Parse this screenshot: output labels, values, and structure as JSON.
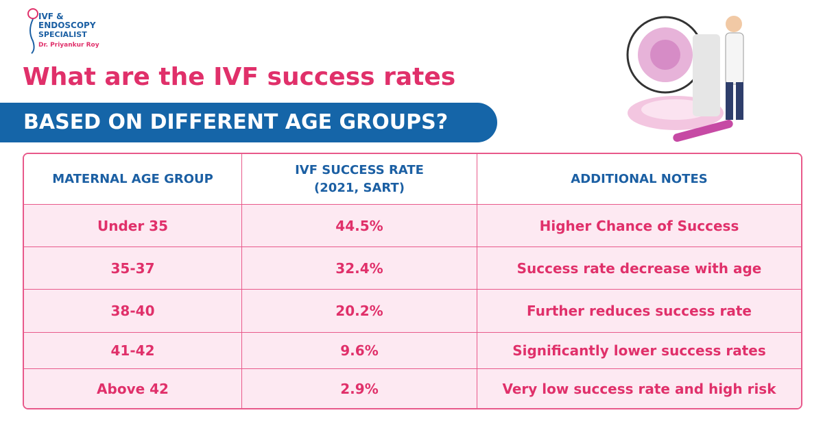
{
  "logo": {
    "lines": [
      "IVF &",
      "ENDOSCOPY",
      "SPECIALIST"
    ],
    "doctor": "Dr. Priyankur Roy"
  },
  "header": {
    "title": "What are the IVF success rates",
    "banner": "BASED ON DIFFERENT AGE GROUPS?"
  },
  "table": {
    "columns": [
      [
        "MATERNAL AGE GROUP"
      ],
      [
        "IVF SUCCESS RATE",
        "(2021, SART)"
      ],
      [
        "ADDITIONAL NOTES"
      ]
    ],
    "rows": [
      [
        "Under 35",
        "44.5%",
        "Higher Chance of Success"
      ],
      [
        "35-37",
        "32.4%",
        "Success rate decrease with age"
      ],
      [
        "38-40",
        "20.2%",
        "Further reduces success rate"
      ],
      [
        "41-42",
        "9.6%",
        "Significantly lower success rates"
      ],
      [
        "Above 42",
        "2.9%",
        "Very low success rate and high risk"
      ]
    ]
  }
}
